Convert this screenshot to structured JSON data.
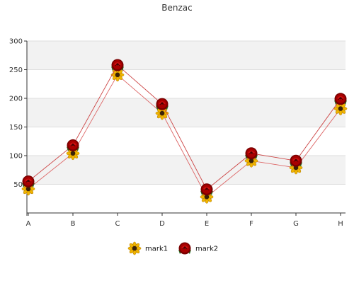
{
  "chart_data": {
    "type": "line",
    "title": "Benzac",
    "xlabel": "",
    "ylabel": "",
    "categories": [
      "A",
      "B",
      "C",
      "D",
      "E",
      "F",
      "G",
      "H"
    ],
    "ylim": [
      0,
      300
    ],
    "yticks": [
      50,
      100,
      150,
      200,
      250,
      300
    ],
    "grid": true,
    "legend_position": "bottom",
    "series": [
      {
        "name": "mark1",
        "values": [
          42,
          104,
          241,
          174,
          28,
          91,
          79,
          182
        ],
        "line_color": "#d66",
        "marker": "sunflower-icon"
      },
      {
        "name": "mark2",
        "values": [
          55,
          118,
          258,
          190,
          41,
          104,
          91,
          199
        ],
        "line_color": "#c44",
        "marker": "rose-icon"
      }
    ],
    "colors": {
      "band": "#f2f2f2",
      "grid": "#dddddd",
      "axis": "#333333"
    }
  }
}
